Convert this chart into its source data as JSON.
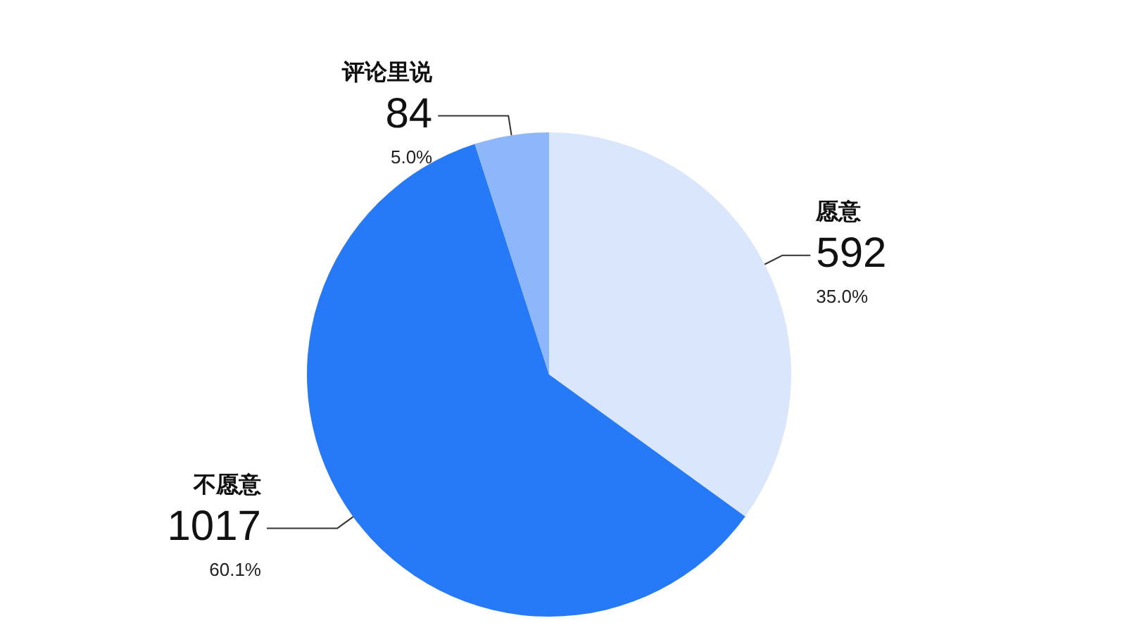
{
  "chart_data": {
    "type": "pie",
    "categories": [
      "愿意",
      "不愿意",
      "评论里说"
    ],
    "values": [
      592,
      1017,
      84
    ],
    "colors": [
      "#dae6fc",
      "#277af7",
      "#8db6fb"
    ],
    "data_labels": true,
    "annotations": [
      {
        "text": "35.0%",
        "x": "愿意"
      },
      {
        "text": "60.1%",
        "x": "不愿意"
      },
      {
        "text": "5.0%",
        "x": "评论里说"
      }
    ],
    "legend": false
  }
}
